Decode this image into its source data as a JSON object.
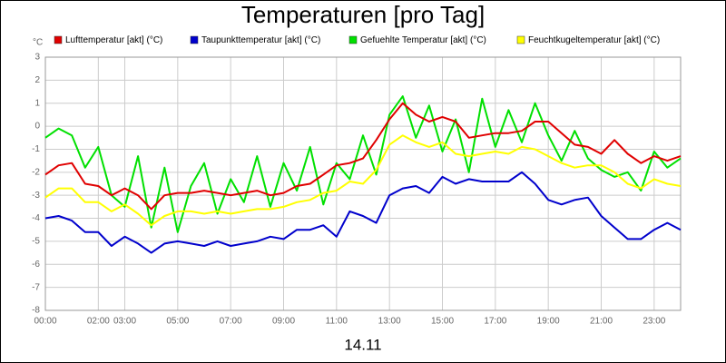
{
  "chart_data": {
    "type": "line",
    "title": "Temperaturen [pro Tag]",
    "y_unit": "°C",
    "x_label": "14.11",
    "x": [
      0,
      0.5,
      1,
      1.5,
      2,
      2.5,
      3,
      3.5,
      4,
      4.5,
      5,
      5.5,
      6,
      6.5,
      7,
      7.5,
      8,
      8.5,
      9,
      9.5,
      10,
      10.5,
      11,
      11.5,
      12,
      12.5,
      13,
      13.5,
      14,
      14.5,
      15,
      15.5,
      16,
      16.5,
      17,
      17.5,
      18,
      18.5,
      19,
      19.5,
      20,
      20.5,
      21,
      21.5,
      22,
      22.5,
      23,
      23.5,
      24
    ],
    "xlim": [
      0,
      24
    ],
    "xticks": [
      {
        "value": 0,
        "label": "00:00"
      },
      {
        "value": 2,
        "label": "02:00"
      },
      {
        "value": 3,
        "label": "03:00"
      },
      {
        "value": 5,
        "label": "05:00"
      },
      {
        "value": 7,
        "label": "07:00"
      },
      {
        "value": 9,
        "label": "09:00"
      },
      {
        "value": 11,
        "label": "11:00"
      },
      {
        "value": 13,
        "label": "13:00"
      },
      {
        "value": 15,
        "label": "15:00"
      },
      {
        "value": 17,
        "label": "17:00"
      },
      {
        "value": 19,
        "label": "19:00"
      },
      {
        "value": 21,
        "label": "21:00"
      },
      {
        "value": 23,
        "label": "23:00"
      }
    ],
    "ylim": [
      -8,
      3
    ],
    "yticks": [
      -8,
      -7,
      -6,
      -5,
      -4,
      -3,
      -2,
      -1,
      0,
      1,
      2,
      3
    ],
    "grid": true,
    "legend": "top",
    "series": [
      {
        "name": "Lufttemperatur [akt] (°C)",
        "color": "#e00000",
        "values": [
          -2.1,
          -1.7,
          -1.6,
          -2.5,
          -2.6,
          -3.0,
          -2.7,
          -3.0,
          -3.6,
          -3.0,
          -2.9,
          -2.9,
          -2.8,
          -2.9,
          -3.0,
          -2.9,
          -2.8,
          -3.0,
          -2.9,
          -2.6,
          -2.5,
          -2.1,
          -1.7,
          -1.6,
          -1.4,
          -0.6,
          0.3,
          1.0,
          0.5,
          0.2,
          0.4,
          0.2,
          -0.5,
          -0.4,
          -0.3,
          -0.3,
          -0.2,
          0.2,
          0.2,
          -0.3,
          -0.8,
          -0.9,
          -1.2,
          -0.6,
          -1.2,
          -1.6,
          -1.3,
          -1.5,
          -1.3
        ]
      },
      {
        "name": "Taupunkttemperatur [akt] (°C)",
        "color": "#0000cc",
        "values": [
          -4.0,
          -3.9,
          -4.1,
          -4.6,
          -4.6,
          -5.2,
          -4.8,
          -5.1,
          -5.5,
          -5.1,
          -5.0,
          -5.1,
          -5.2,
          -5.0,
          -5.2,
          -5.1,
          -5.0,
          -4.8,
          -4.9,
          -4.5,
          -4.5,
          -4.3,
          -4.8,
          -3.7,
          -3.9,
          -4.2,
          -3.0,
          -2.7,
          -2.6,
          -2.9,
          -2.2,
          -2.5,
          -2.3,
          -2.4,
          -2.4,
          -2.4,
          -2.0,
          -2.5,
          -3.2,
          -3.4,
          -3.2,
          -3.1,
          -3.9,
          -4.4,
          -4.9,
          -4.9,
          -4.5,
          -4.2,
          -4.5
        ]
      },
      {
        "name": "Gefuehlte Temperatur [akt] (°C)",
        "color": "#00e000",
        "values": [
          -0.5,
          -0.1,
          -0.4,
          -1.8,
          -0.9,
          -3.0,
          -3.5,
          -1.3,
          -4.4,
          -1.8,
          -4.6,
          -2.6,
          -1.6,
          -3.8,
          -2.3,
          -3.3,
          -1.3,
          -3.5,
          -1.6,
          -2.8,
          -0.9,
          -3.4,
          -1.6,
          -2.3,
          -0.4,
          -2.1,
          0.5,
          1.3,
          -0.5,
          0.9,
          -1.1,
          0.3,
          -2.0,
          1.2,
          -0.9,
          0.7,
          -0.7,
          1.0,
          -0.4,
          -1.5,
          -0.2,
          -1.4,
          -1.9,
          -2.2,
          -2.0,
          -2.8,
          -1.1,
          -1.8,
          -1.4
        ]
      },
      {
        "name": "Feuchtkugeltemperatur [akt] (°C)",
        "color": "#ffff00",
        "values": [
          -3.1,
          -2.7,
          -2.7,
          -3.3,
          -3.3,
          -3.7,
          -3.4,
          -3.8,
          -4.3,
          -3.9,
          -3.7,
          -3.7,
          -3.8,
          -3.7,
          -3.8,
          -3.7,
          -3.6,
          -3.6,
          -3.5,
          -3.3,
          -3.2,
          -2.9,
          -2.8,
          -2.4,
          -2.5,
          -1.9,
          -0.8,
          -0.4,
          -0.7,
          -0.9,
          -0.7,
          -1.2,
          -1.3,
          -1.2,
          -1.1,
          -1.2,
          -0.9,
          -1.0,
          -1.3,
          -1.6,
          -1.8,
          -1.7,
          -1.7,
          -2.0,
          -2.5,
          -2.7,
          -2.3,
          -2.5,
          -2.6
        ]
      }
    ]
  }
}
